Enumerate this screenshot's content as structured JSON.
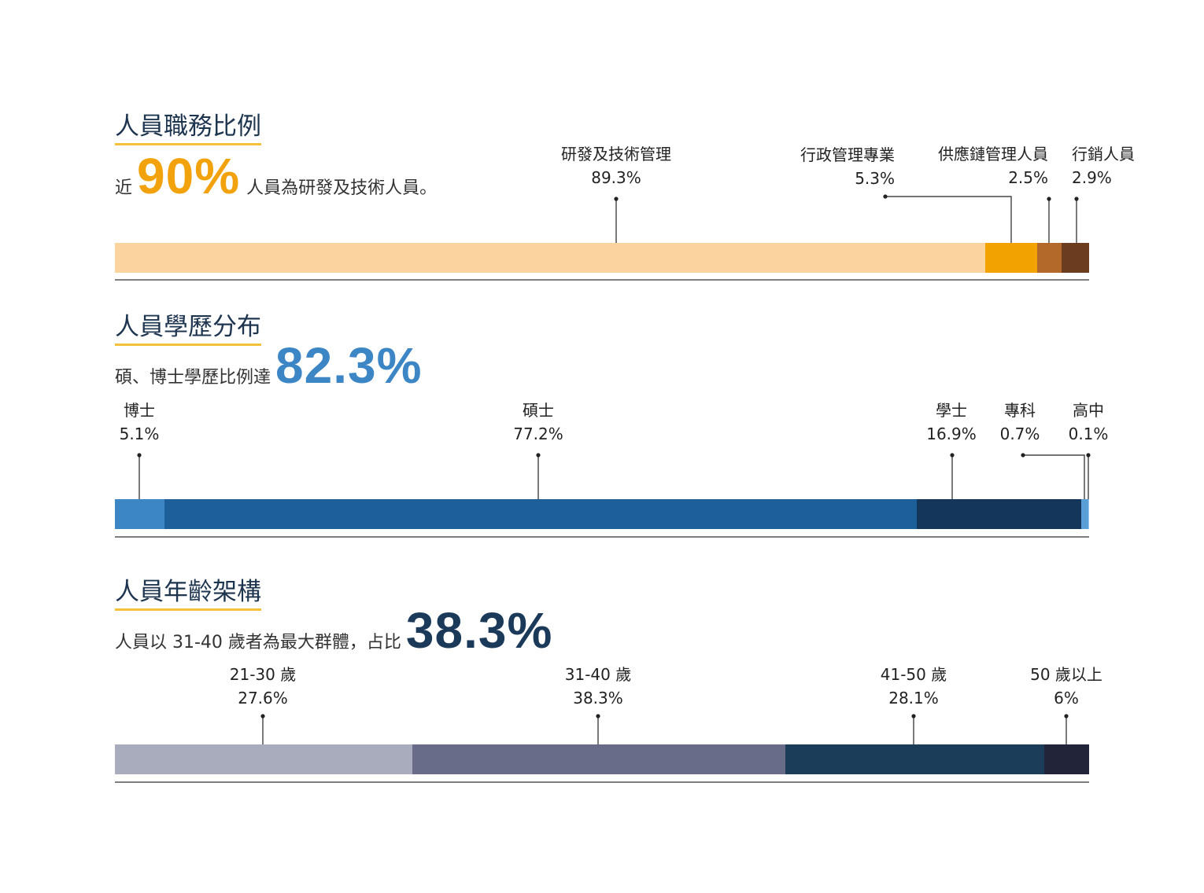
{
  "sections": [
    {
      "title": "人員職務比例",
      "subtitle": {
        "pre": "近",
        "highlight": "90%",
        "post": "人員為研發及技術人員。",
        "highlight_color": "#f2a20c"
      },
      "chart_data": {
        "type": "bar",
        "orientation": "horizontal-stacked",
        "categories": [
          "研發及技術管理",
          "行政管理專業",
          "供應鏈管理人員",
          "行銷人員"
        ],
        "values": [
          89.3,
          5.3,
          2.5,
          2.9
        ],
        "value_labels": [
          "89.3%",
          "5.3%",
          "2.5%",
          "2.9%"
        ],
        "colors": [
          "#fbd39e",
          "#f3a300",
          "#b2692a",
          "#6b3d1e"
        ],
        "unit": "%"
      }
    },
    {
      "title": "人員學歷分布",
      "subtitle": {
        "pre": "碩、博士學歷比例達",
        "highlight": "82.3%",
        "post": "",
        "highlight_color": "#3d86c6"
      },
      "chart_data": {
        "type": "bar",
        "orientation": "horizontal-stacked",
        "categories": [
          "博士",
          "碩士",
          "學士",
          "專科",
          "高中"
        ],
        "values": [
          5.1,
          77.2,
          16.9,
          0.7,
          0.1
        ],
        "value_labels": [
          "5.1%",
          "77.2%",
          "16.9%",
          "0.7%",
          "0.1%"
        ],
        "colors": [
          "#3d86c6",
          "#1d5f98",
          "#14365a",
          "#5a9fd8",
          "#9cc4ec"
        ],
        "unit": "%"
      }
    },
    {
      "title": "人員年齡架構",
      "subtitle": {
        "pre": "人員以 31-40 歲者為最大群體，占比",
        "highlight": "38.3%",
        "post": "",
        "highlight_color": "#1b3a5a"
      },
      "chart_data": {
        "type": "bar",
        "orientation": "horizontal-stacked",
        "categories": [
          "21-30 歲",
          "31-40 歲",
          "41-50 歲",
          "50 歲以上"
        ],
        "values": [
          27.6,
          38.3,
          28.1,
          6
        ],
        "value_labels": [
          "27.6%",
          "38.3%",
          "28.1%",
          "6%"
        ],
        "colors": [
          "#a9acbd",
          "#686c88",
          "#1b3d5a",
          "#22243a"
        ],
        "unit": "%"
      }
    }
  ]
}
